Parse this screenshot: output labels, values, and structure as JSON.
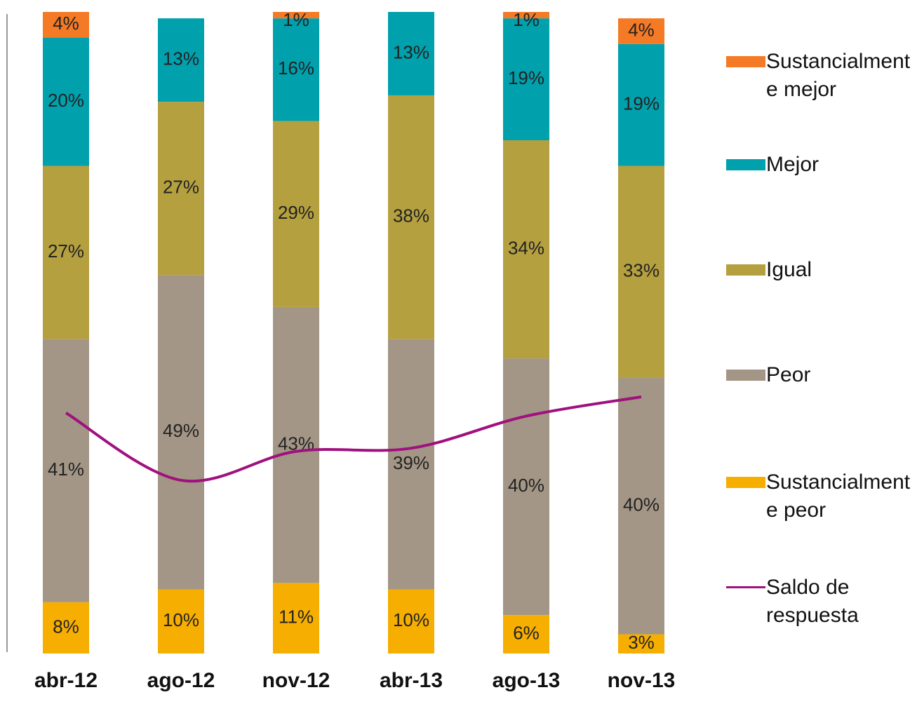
{
  "chart_data": {
    "type": "bar",
    "stacked": true,
    "categories": [
      "abr-12",
      "ago-12",
      "nov-12",
      "abr-13",
      "ago-13",
      "nov-13"
    ],
    "ylim": [
      0,
      100
    ],
    "y2lim": [
      -100,
      100
    ],
    "series": [
      {
        "name": "Sustancialmente peor",
        "color": "#f6ae00",
        "values": [
          8,
          10,
          11,
          10,
          6,
          3
        ],
        "value_labels": [
          "8%",
          "10%",
          "11%",
          "10%",
          "6%",
          "3%"
        ]
      },
      {
        "name": "Peor",
        "color": "#a39686",
        "values": [
          41,
          49,
          43,
          39,
          40,
          40
        ],
        "value_labels": [
          "41%",
          "49%",
          "43%",
          "39%",
          "40%",
          "40%"
        ]
      },
      {
        "name": "Igual",
        "color": "#b5a040",
        "values": [
          27,
          27,
          29,
          38,
          34,
          33
        ],
        "value_labels": [
          "27%",
          "27%",
          "29%",
          "38%",
          "34%",
          "33%"
        ]
      },
      {
        "name": "Mejor",
        "color": "#00a0ad",
        "values": [
          20,
          13,
          16,
          13,
          19,
          19
        ],
        "value_labels": [
          "20%",
          "13%",
          "16%",
          "13%",
          "19%",
          "19%"
        ]
      },
      {
        "name": "Sustancialmente mejor",
        "color": "#f47a25",
        "values": [
          4,
          null,
          1,
          null,
          1,
          4
        ],
        "value_labels": [
          "4%",
          null,
          "1%",
          null,
          "1%",
          "4%"
        ]
      },
      {
        "name": "Saldo de respuesta",
        "color": "#a0107e",
        "type": "line",
        "axis": "y2",
        "values": [
          -25,
          -46,
          -37,
          -36,
          -26,
          -20
        ]
      }
    ]
  }
}
